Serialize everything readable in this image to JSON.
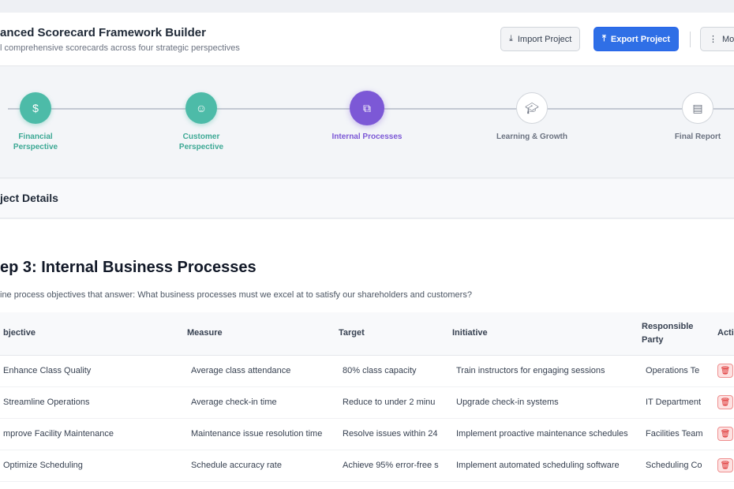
{
  "header": {
    "title": "anced Scorecard Framework Builder",
    "subtitle": "l comprehensive scorecards across four strategic perspectives",
    "import_label": "Import Project",
    "export_label": "Export Project",
    "more_label": "Mo"
  },
  "steps": [
    {
      "label": "Financial Perspective",
      "state": "done",
      "icon": "dollar-icon"
    },
    {
      "label": "Customer Perspective",
      "state": "done",
      "icon": "user-icon"
    },
    {
      "label": "Internal Processes",
      "state": "active",
      "icon": "process-icon"
    },
    {
      "label": "Learning & Growth",
      "state": "todo",
      "icon": "graduation-cap-icon"
    },
    {
      "label": "Final Report",
      "state": "todo",
      "icon": "document-icon"
    }
  ],
  "details": {
    "title": "ject Details"
  },
  "section": {
    "title": "ep 3: Internal Business Processes",
    "description": "ine process objectives that answer: What business processes must we excel at to satisfy our shareholders and customers?"
  },
  "table": {
    "columns": [
      "bjective",
      "Measure",
      "Target",
      "Initiative",
      "Responsible Party",
      "Actio"
    ],
    "rows": [
      [
        "Enhance Class Quality",
        "Average class attendance",
        "80% class capacity",
        "Train instructors for engaging sessions",
        "Operations Te"
      ],
      [
        "Streamline Operations",
        "Average check-in time",
        "Reduce to under 2 minu",
        "Upgrade check-in systems",
        "IT Department"
      ],
      [
        "mprove Facility Maintenance",
        "Maintenance issue resolution time",
        "Resolve issues within 24",
        "Implement proactive maintenance schedules",
        "Facilities Team"
      ],
      [
        "Optimize Scheduling",
        "Schedule accuracy rate",
        "Achieve 95% error-free s",
        "Implement automated scheduling software",
        "Scheduling Co"
      ]
    ]
  },
  "colors": {
    "done": "#4dbba8",
    "active": "#7c58d6",
    "primary": "#2f6fe6",
    "danger": "#dc2626"
  }
}
